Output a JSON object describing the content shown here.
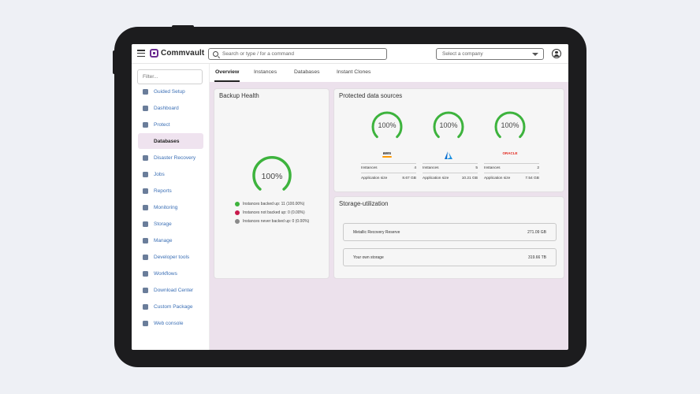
{
  "topbar": {
    "brand": "Commvault",
    "search_placeholder": "Search or type / for a command",
    "company_select": "Select a company"
  },
  "sidebar": {
    "filter_placeholder": "Filter...",
    "items": [
      {
        "label": "Guided Setup",
        "icon": "guided-setup-icon"
      },
      {
        "label": "Dashboard",
        "icon": "dashboard-icon"
      },
      {
        "label": "Protect",
        "icon": "protect-icon"
      },
      {
        "label": "Databases",
        "icon": ""
      },
      {
        "label": "Disaster Recovery",
        "icon": "disaster-recovery-icon"
      },
      {
        "label": "Jobs",
        "icon": "jobs-icon"
      },
      {
        "label": "Reports",
        "icon": "reports-icon"
      },
      {
        "label": "Monitoring",
        "icon": "monitoring-icon"
      },
      {
        "label": "Storage",
        "icon": "storage-icon"
      },
      {
        "label": "Manage",
        "icon": "manage-icon"
      },
      {
        "label": "Developer tools",
        "icon": "developer-tools-icon"
      },
      {
        "label": "Workflows",
        "icon": "workflows-icon"
      },
      {
        "label": "Download Center",
        "icon": "download-center-icon"
      },
      {
        "label": "Custom Package",
        "icon": "custom-package-icon"
      },
      {
        "label": "Web console",
        "icon": "web-console-icon"
      }
    ],
    "active_index": 3
  },
  "tabs": [
    "Overview",
    "Instances",
    "Databases",
    "Instant Clones"
  ],
  "backup_health": {
    "title": "Backup Health",
    "percent": "100%",
    "legend": [
      {
        "label": "Instances backed up: 11 (100.00%)",
        "color": "#3db33d"
      },
      {
        "label": "Instances not backed up: 0 (0.00%)",
        "color": "#c8194b"
      },
      {
        "label": "Instances never backed up: 0 (0.00%)",
        "color": "#8a8a8a"
      }
    ]
  },
  "protected_sources": {
    "title": "Protected data sources",
    "sources": [
      {
        "logo": "aws",
        "percent": "100%",
        "instances_label": "Instances",
        "instances": "4",
        "size_label": "Application size",
        "size": "8.67 GB"
      },
      {
        "logo": "azure",
        "percent": "100%",
        "instances_label": "Instances",
        "instances": "5",
        "size_label": "Application size",
        "size": "10.21 GB"
      },
      {
        "logo": "ORACLE",
        "percent": "100%",
        "instances_label": "Instances",
        "instances": "2",
        "size_label": "Application size",
        "size": "7.54 GB"
      }
    ]
  },
  "storage": {
    "title": "Storage-utilization",
    "rows": [
      {
        "label": "Metallic Recovery Reserve",
        "value": "271.09 GB"
      },
      {
        "label": "Your own storage",
        "value": "319.66 TB"
      }
    ]
  },
  "colors": {
    "gauge_green": "#3db33d",
    "accent": "#6b2c91",
    "link": "#3b6fb5"
  }
}
